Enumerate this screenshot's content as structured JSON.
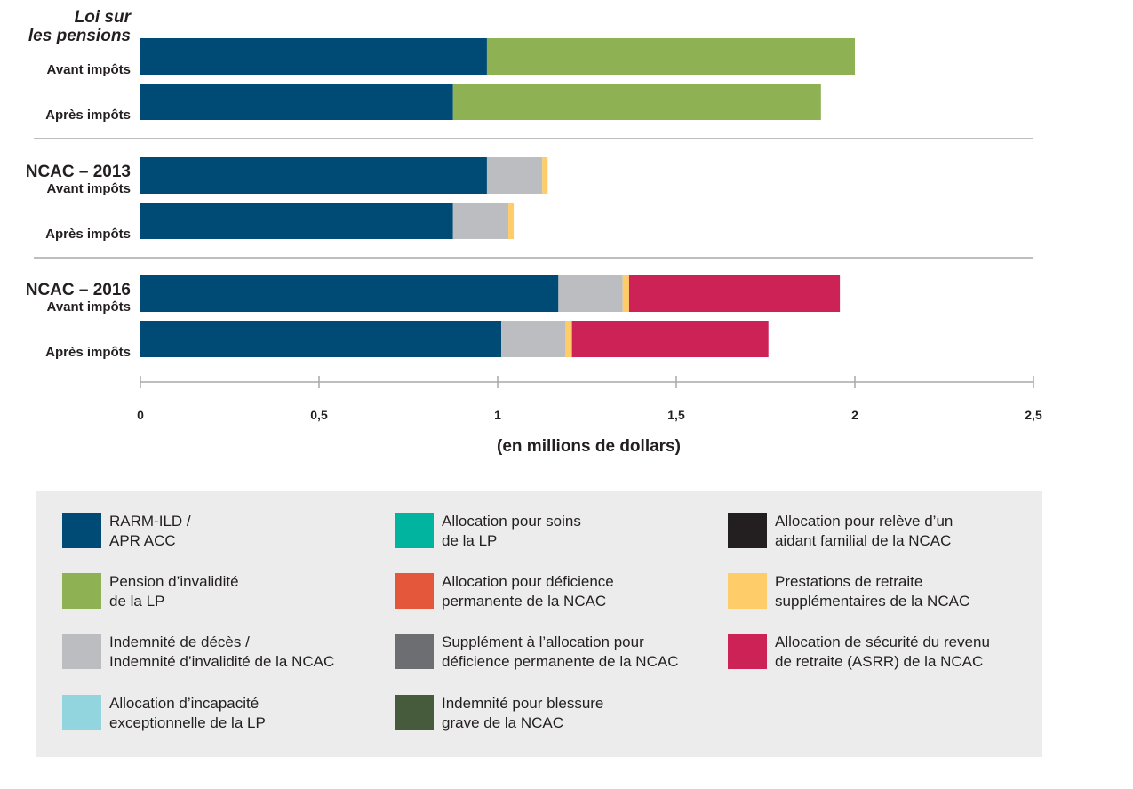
{
  "chart_data": {
    "type": "bar",
    "orientation": "horizontal",
    "stacked": true,
    "xlabel": "(en millions de dollars)",
    "xlim": [
      0,
      2.5
    ],
    "xticks": [
      "0",
      "0,5",
      "1",
      "1,5",
      "2",
      "2,5"
    ],
    "grid": false,
    "legend_placement": "bottom",
    "groups": [
      {
        "title_lines": [
          "Loi sur",
          "les pensions"
        ],
        "title_italic": true,
        "rows": [
          {
            "label": "Avant impôts",
            "segments": [
              {
                "series": "rarm",
                "value": 0.97
              },
              {
                "series": "pension",
                "value": 1.03
              }
            ]
          },
          {
            "label": "Après impôts",
            "segments": [
              {
                "series": "rarm",
                "value": 0.875
              },
              {
                "series": "pension",
                "value": 1.03
              }
            ]
          }
        ]
      },
      {
        "title_lines": [
          "NCAC – 2013"
        ],
        "title_italic": false,
        "rows": [
          {
            "label": "Avant impôts",
            "segments": [
              {
                "series": "rarm",
                "value": 0.97
              },
              {
                "series": "deces",
                "value": 0.155
              },
              {
                "series": "retraite",
                "value": 0.015
              }
            ]
          },
          {
            "label": "Après impôts",
            "segments": [
              {
                "series": "rarm",
                "value": 0.875
              },
              {
                "series": "deces",
                "value": 0.155
              },
              {
                "series": "retraite",
                "value": 0.015
              }
            ]
          }
        ]
      },
      {
        "title_lines": [
          "NCAC – 2016"
        ],
        "title_italic": false,
        "rows": [
          {
            "label": "Avant impôts",
            "segments": [
              {
                "series": "rarm",
                "value": 1.17
              },
              {
                "series": "deces",
                "value": 0.18
              },
              {
                "series": "retraite",
                "value": 0.018
              },
              {
                "series": "asrr",
                "value": 0.59
              }
            ]
          },
          {
            "label": "Après impôts",
            "segments": [
              {
                "series": "rarm",
                "value": 1.01
              },
              {
                "series": "deces",
                "value": 0.18
              },
              {
                "series": "retraite",
                "value": 0.018
              },
              {
                "series": "asrr",
                "value": 0.55
              }
            ]
          }
        ]
      }
    ],
    "series": [
      {
        "key": "rarm",
        "name": "RARM-ILD /\nAPR ACC",
        "color": "#004b75"
      },
      {
        "key": "soins",
        "name": "Allocation pour soins\nde la LP",
        "color": "#00b4a0"
      },
      {
        "key": "releve",
        "name": "Allocation pour relève d’un\naidant familial de la NCAC",
        "color": "#231f20"
      },
      {
        "key": "pension",
        "name": "Pension d’invalidité\nde la LP",
        "color": "#8db153"
      },
      {
        "key": "deficience",
        "name": "Allocation pour déficience\npermanente de la NCAC",
        "color": "#e5573b"
      },
      {
        "key": "retraite",
        "name": "Prestations de retraite\nsupplémentaires de la NCAC",
        "color": "#fecd6a"
      },
      {
        "key": "deces",
        "name": "Indemnité de décès /\nIndemnité d’invalidité de la NCAC",
        "color": "#bcbdc0"
      },
      {
        "key": "supplement",
        "name": "Supplément à l’allocation pour\ndéficience permanente de la NCAC",
        "color": "#6d6e71"
      },
      {
        "key": "asrr",
        "name": "Allocation de sécurité du revenu\nde retraite (ASRR) de la NCAC",
        "color": "#cc2255"
      },
      {
        "key": "incapacite",
        "name": "Allocation d’incapacité\nexceptionnelle de la LP",
        "color": "#93d5df"
      },
      {
        "key": "blessure",
        "name": "Indemnité pour blessure\ngrave de la NCAC",
        "color": "#465a3c"
      }
    ]
  }
}
